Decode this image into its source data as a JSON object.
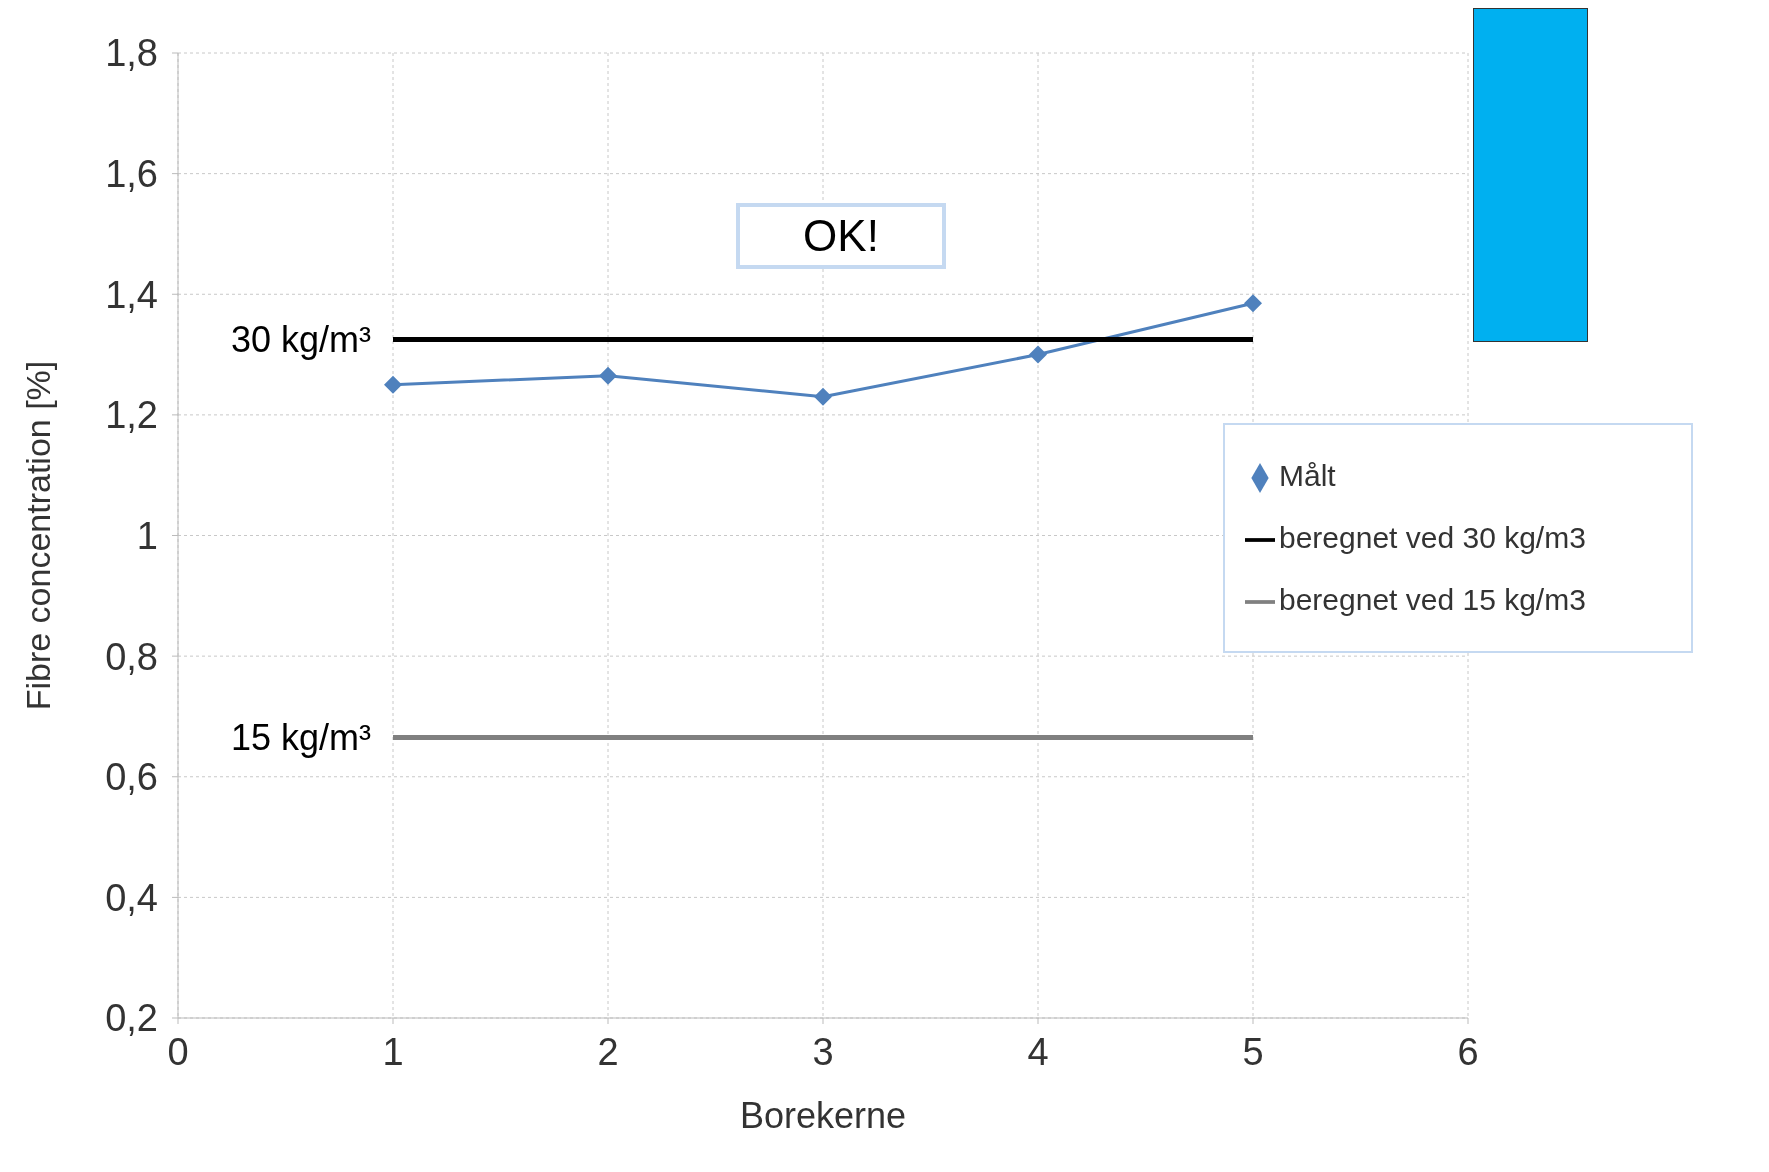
{
  "chart_data": {
    "type": "line",
    "xlabel": "Borekerne",
    "ylabel": "Fibre concentration [%]",
    "xlim": [
      0,
      6
    ],
    "xticks": [
      0,
      1,
      2,
      3,
      4,
      5,
      6
    ],
    "ylim": [
      0.2,
      1.8
    ],
    "yticks": [
      {
        "value": 0.2,
        "label": "0,2"
      },
      {
        "value": 0.4,
        "label": "0,4"
      },
      {
        "value": 0.6,
        "label": "0,6"
      },
      {
        "value": 0.8,
        "label": "0,8"
      },
      1,
      {
        "value": 1.2,
        "label": "1,2"
      },
      {
        "value": 1.4,
        "label": "1,4"
      },
      {
        "value": 1.6,
        "label": "1,6"
      },
      {
        "value": 1.8,
        "label": "1,8"
      }
    ],
    "grid": true,
    "legend": "right",
    "line_style": "solid",
    "series": [
      {
        "name": "Målt",
        "color": "#4f81bd",
        "marker": "diamond",
        "x": [
          1,
          2,
          3,
          4,
          5
        ],
        "values": [
          1.25,
          1.265,
          1.23,
          1.3,
          1.385
        ]
      },
      {
        "name": "beregnet ved 30 kg/m3",
        "color": "#000000",
        "marker": "none",
        "x": [
          1,
          5
        ],
        "values": [
          1.325,
          1.325
        ]
      },
      {
        "name": "beregnet ved 15 kg/m3",
        "color": "#808080",
        "marker": "none",
        "x": [
          1,
          5
        ],
        "values": [
          0.665,
          0.665
        ]
      }
    ],
    "annotations": [
      {
        "text": "30 kg/m³",
        "x": 1,
        "y": 1.325
      },
      {
        "text": "15 kg/m³",
        "x": 1,
        "y": 0.665
      },
      "OK!"
    ]
  }
}
